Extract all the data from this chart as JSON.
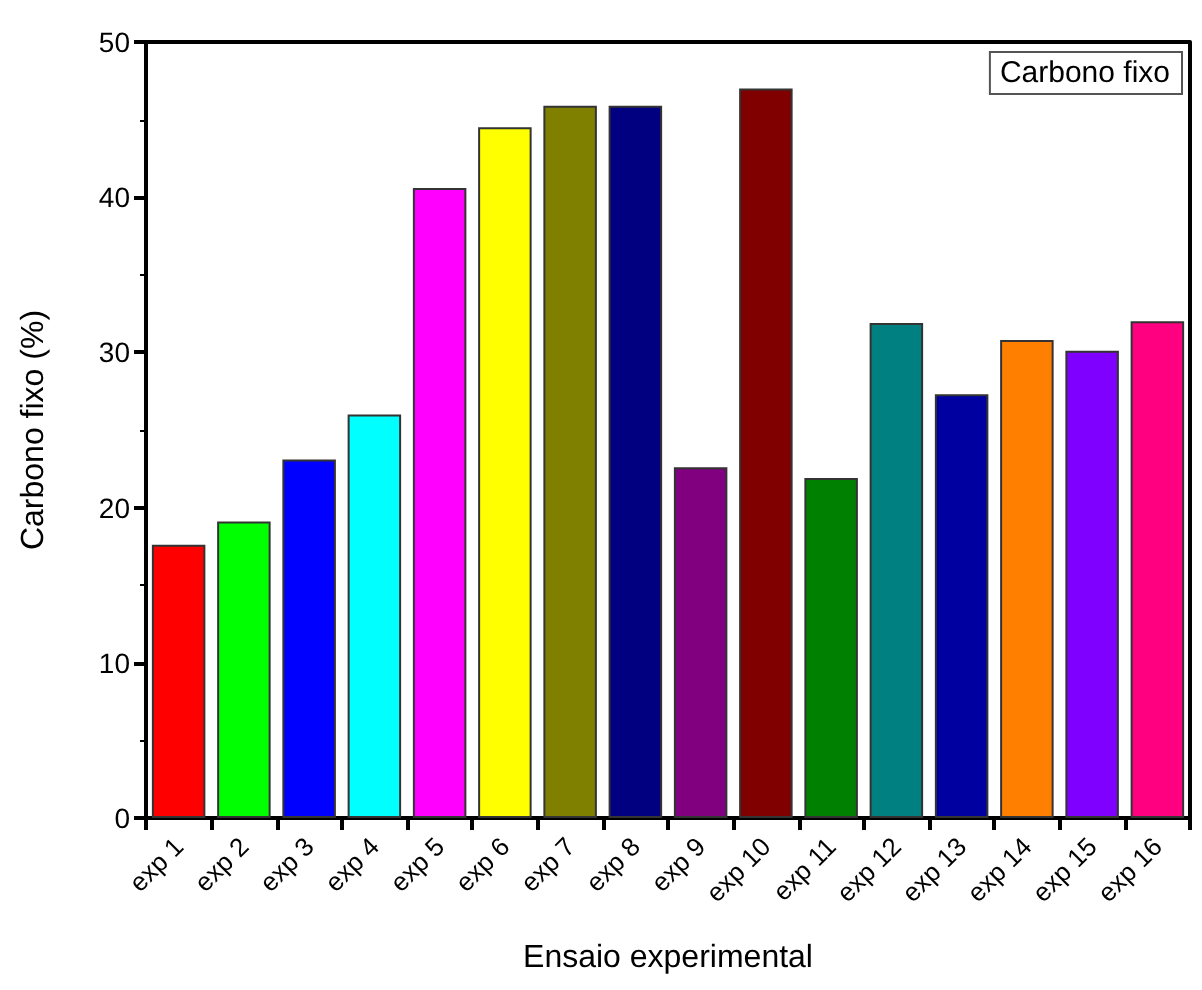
{
  "chart_data": {
    "type": "bar",
    "xlabel": "Ensaio experimental",
    "ylabel": "Carbono fixo (%)",
    "categories": [
      "exp 1",
      "exp 2",
      "exp 3",
      "exp 4",
      "exp 5",
      "exp 6",
      "exp 7",
      "exp 8",
      "exp 9",
      "exp 10",
      "exp 11",
      "exp 12",
      "exp 13",
      "exp 14",
      "exp 15",
      "exp 16"
    ],
    "series": [
      {
        "name": "Carbono fixo",
        "values": [
          17.6,
          19.1,
          23.1,
          26.0,
          40.6,
          44.5,
          45.9,
          45.9,
          22.6,
          47.0,
          21.9,
          31.9,
          27.3,
          30.8,
          30.1,
          32.0
        ],
        "colors": [
          "#ff0000",
          "#00ff00",
          "#0000ff",
          "#00ffff",
          "#ff00ff",
          "#ffff00",
          "#808000",
          "#000080",
          "#800080",
          "#800000",
          "#008000",
          "#008080",
          "#0000a0",
          "#ff8000",
          "#8000ff",
          "#ff0080"
        ]
      }
    ],
    "ylim": [
      0,
      50
    ],
    "yticks": [
      0,
      10,
      20,
      30,
      40,
      50
    ],
    "grid": false,
    "legend": "top right"
  }
}
